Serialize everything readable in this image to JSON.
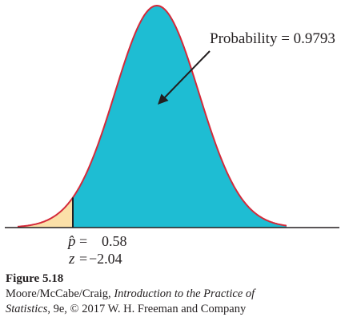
{
  "diagram": {
    "annotation_label": "Probability = 0.9793",
    "phat_symbol": "p̂",
    "phat_eq": "=",
    "phat_value": "0.58",
    "z_symbol": "z",
    "z_eq": "=",
    "z_value": "−2.04"
  },
  "colors": {
    "curve": "#d42a3a",
    "shaded_right": "#1ebdd3",
    "shaded_left": "#fbe0a8",
    "axis": "#231f20"
  },
  "caption": {
    "figure_label": "Figure 5.18",
    "line1_prefix": "Moore/McCabe/Craig, ",
    "book_title_a": "Introduction to the Practice of",
    "book_title_b": "Statistics",
    "line2_suffix": ", 9e, © 2017 W. H. Freeman and Company"
  }
}
